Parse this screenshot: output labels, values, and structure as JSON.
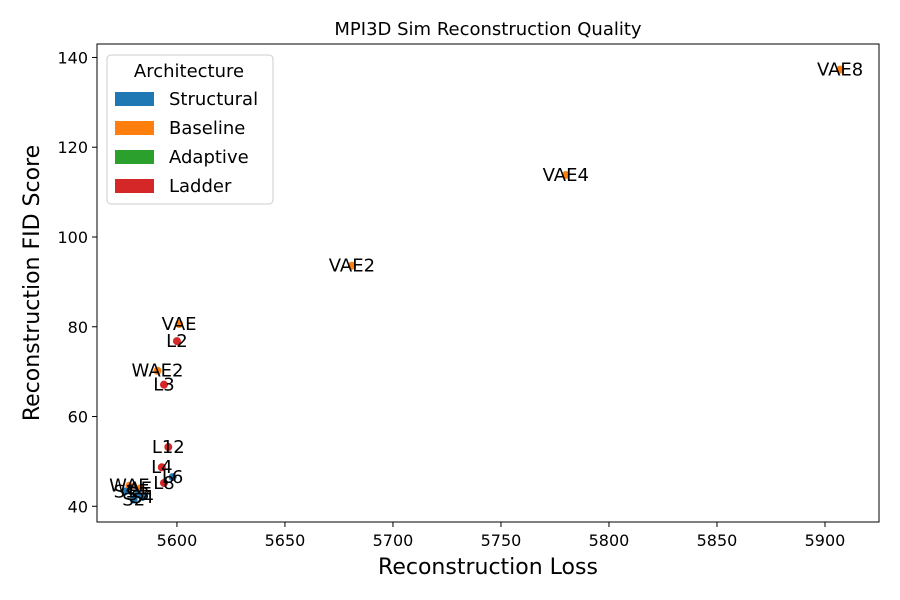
{
  "chart_data": {
    "type": "scatter",
    "title": "MPI3D Sim Reconstruction Quality",
    "xlabel": "Reconstruction Loss",
    "ylabel": "Reconstruction FID Score",
    "xlim": [
      5563,
      5925
    ],
    "ylim": [
      36.5,
      143
    ],
    "xticks": [
      5600,
      5650,
      5700,
      5750,
      5800,
      5850,
      5900
    ],
    "yticks": [
      40,
      60,
      80,
      100,
      120,
      140
    ],
    "grid": false,
    "legend": {
      "title": "Architecture",
      "placement": "top-left",
      "entries": [
        {
          "label": "Structural",
          "color": "#1f77b4"
        },
        {
          "label": "Baseline",
          "color": "#ff7f0e"
        },
        {
          "label": "Adaptive",
          "color": "#2ca02c"
        },
        {
          "label": "Ladder",
          "color": "#d62728"
        }
      ]
    },
    "points": [
      {
        "label": "VAE8",
        "x": 5907,
        "y": 137.3,
        "group": "Baseline"
      },
      {
        "label": "VAE4",
        "x": 5780,
        "y": 113.8,
        "group": "Baseline"
      },
      {
        "label": "VAE2",
        "x": 5681,
        "y": 93.6,
        "group": "Baseline"
      },
      {
        "label": "VAE",
        "x": 5601,
        "y": 80.6,
        "group": "Baseline"
      },
      {
        "label": "L2",
        "x": 5600,
        "y": 76.8,
        "group": "Ladder"
      },
      {
        "label": "WAE2",
        "x": 5591,
        "y": 70.2,
        "group": "Baseline"
      },
      {
        "label": "L3",
        "x": 5594,
        "y": 67.1,
        "group": "Ladder"
      },
      {
        "label": "L12",
        "x": 5596,
        "y": 53.2,
        "group": "Ladder"
      },
      {
        "label": "L4",
        "x": 5593,
        "y": 48.7,
        "group": "Ladder"
      },
      {
        "label": "L6",
        "x": 5598,
        "y": 46.5,
        "group": "Structural"
      },
      {
        "label": "L8",
        "x": 5594,
        "y": 45.2,
        "group": "Ladder"
      },
      {
        "label": "WAE",
        "x": 5578,
        "y": 44.6,
        "group": "Baseline"
      },
      {
        "label": "AE",
        "x": 5583,
        "y": 44.0,
        "group": "Baseline"
      },
      {
        "label": "S1",
        "x": 5576,
        "y": 43.3,
        "group": "Structural"
      },
      {
        "label": "S3",
        "x": 5582,
        "y": 42.7,
        "group": "Structural"
      },
      {
        "label": "S4",
        "x": 5584,
        "y": 42.1,
        "group": "Structural"
      },
      {
        "label": "S2",
        "x": 5580,
        "y": 41.5,
        "group": "Structural"
      }
    ]
  }
}
